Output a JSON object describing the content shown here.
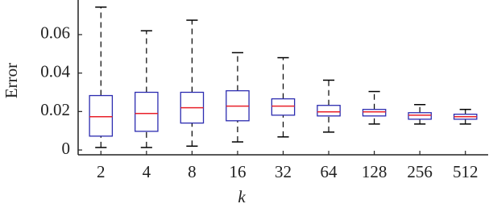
{
  "chart_data": {
    "type": "box",
    "y_label": "Error",
    "x_label": "k",
    "categories": [
      "2",
      "4",
      "8",
      "16",
      "32",
      "64",
      "128",
      "256",
      "512"
    ],
    "boxes": [
      {
        "whislo": 0.0013,
        "q1": 0.0072,
        "median": 0.0173,
        "q3": 0.0283,
        "whishi": 0.0743
      },
      {
        "whislo": 0.0013,
        "q1": 0.0097,
        "median": 0.019,
        "q3": 0.03,
        "whishi": 0.062
      },
      {
        "whislo": 0.002,
        "q1": 0.014,
        "median": 0.022,
        "q3": 0.03,
        "whishi": 0.0675
      },
      {
        "whislo": 0.0042,
        "q1": 0.0152,
        "median": 0.0228,
        "q3": 0.0308,
        "whishi": 0.0506
      },
      {
        "whislo": 0.0068,
        "q1": 0.0181,
        "median": 0.0228,
        "q3": 0.0266,
        "whishi": 0.048
      },
      {
        "whislo": 0.0093,
        "q1": 0.0177,
        "median": 0.0198,
        "q3": 0.0232,
        "whishi": 0.0363
      },
      {
        "whislo": 0.0135,
        "q1": 0.0177,
        "median": 0.0198,
        "q3": 0.0211,
        "whishi": 0.0304
      },
      {
        "whislo": 0.0135,
        "q1": 0.016,
        "median": 0.0181,
        "q3": 0.0194,
        "whishi": 0.0236
      },
      {
        "whislo": 0.0135,
        "q1": 0.016,
        "median": 0.0173,
        "q3": 0.0186,
        "whishi": 0.0211
      }
    ],
    "box_color": "#2b2bb0",
    "median_color": "#e8202a",
    "whisker_color": "#000000",
    "ylim": [
      -0.0025,
      0.078
    ],
    "yticks": [
      0,
      0.02,
      0.04,
      0.06
    ]
  }
}
